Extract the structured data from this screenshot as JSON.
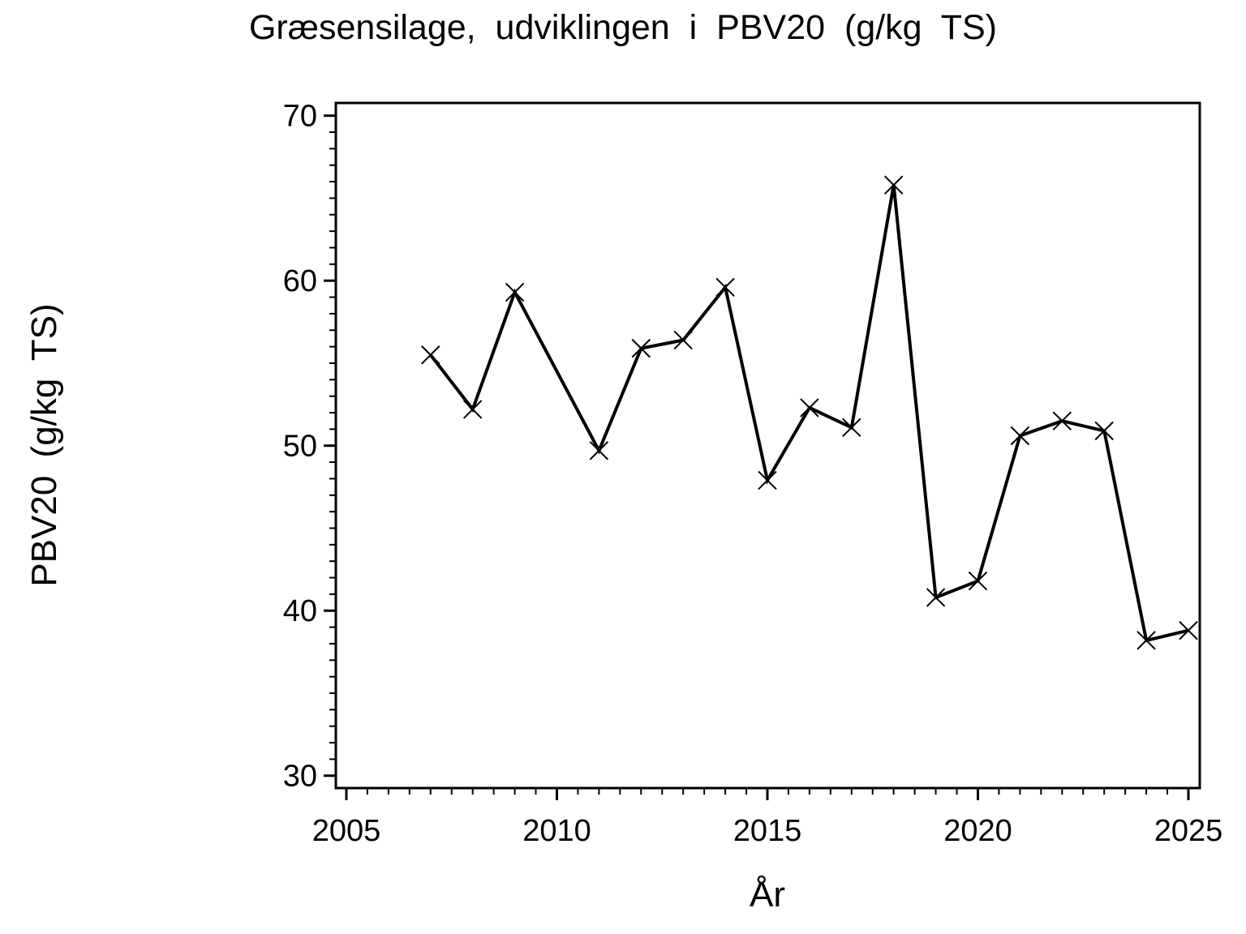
{
  "chart_data": {
    "type": "line",
    "title": "Græsensilage,  udviklingen  i  PBV20  (g/kg  TS)",
    "xlabel": "År",
    "ylabel": "PBV20  (g/kg  TS)",
    "xlim": [
      2004.75,
      2025.27
    ],
    "ylim": [
      29.25,
      70.77
    ],
    "x_ticks_major": [
      2005,
      2010,
      2015,
      2020,
      2025
    ],
    "x_tick_labels": [
      "2005",
      "2010",
      "2015",
      "2020",
      "2025"
    ],
    "x_minor_step": 0.5,
    "y_ticks_major": [
      30,
      40,
      50,
      60,
      70
    ],
    "y_tick_labels": [
      "30",
      "40",
      "50",
      "60",
      "70"
    ],
    "y_minor_step": 1,
    "grid": false,
    "legend": null,
    "marker": "x",
    "line_color": "#000000",
    "background_color": "#ffffff",
    "missing_years": [
      2010
    ],
    "series": [
      {
        "name": "PBV20",
        "x": [
          2007,
          2008,
          2009,
          2011,
          2012,
          2013,
          2014,
          2015,
          2016,
          2017,
          2018,
          2019,
          2020,
          2021,
          2022,
          2023,
          2024,
          2025
        ],
        "y": [
          55.5,
          52.2,
          59.3,
          49.7,
          55.9,
          56.4,
          59.6,
          47.9,
          52.3,
          51.1,
          65.8,
          40.8,
          41.8,
          50.6,
          51.5,
          50.9,
          38.2,
          38.8
        ]
      }
    ]
  }
}
